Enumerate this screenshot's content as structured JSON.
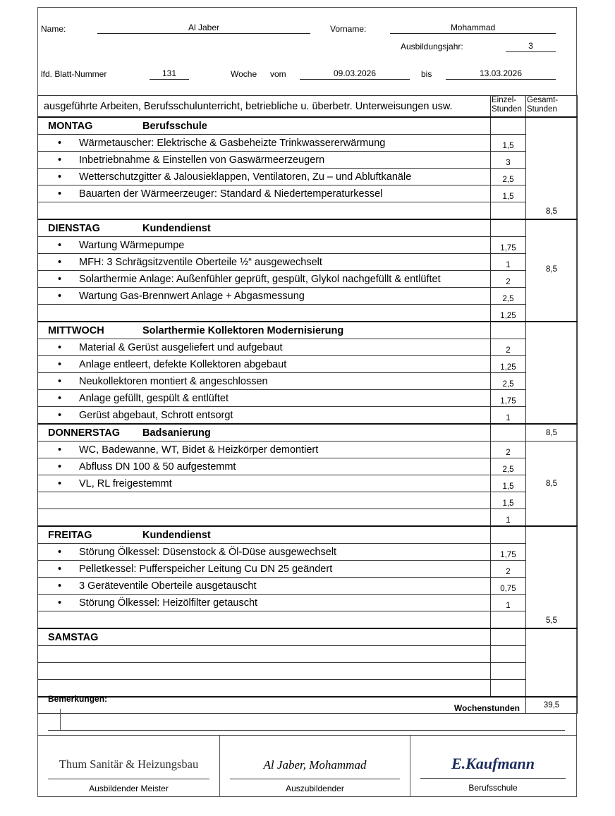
{
  "header": {
    "name_label": "Name:",
    "name": "Al Jaber",
    "vorname_label": "Vorname:",
    "vorname": "Mohammad",
    "jahr_label": "Ausbildungsjahr:",
    "jahr": "3",
    "blatt_label": "lfd. Blatt-Nummer",
    "blatt": "131",
    "woche_label": "Woche",
    "vom_label": "vom",
    "vom": "09.03.2026",
    "bis_label": "bis",
    "bis": "13.03.2026"
  },
  "table_header": {
    "activities": "ausgeführte Arbeiten, Berufsschulunterricht, betriebliche u. überbetr. Unterweisungen usw.",
    "einzel": "Einzel-\nStunden",
    "gesamt": "Gesamt-\nStunden"
  },
  "days": [
    {
      "name": "MONTAG",
      "sub": "Berufsschule",
      "rows": [
        {
          "text": "Wärmetauscher: Elektrische & Gasbeheizte Trinkwassererwärmung",
          "hours": "1,5"
        },
        {
          "text": "Inbetriebnahme & Einstellen von Gaswärmeerzeugern",
          "hours": "3"
        },
        {
          "text": "Wetterschutzgitter & Jalousieklappen, Ventilatoren, Zu – und Abluftkanäle",
          "hours": "2,5"
        },
        {
          "text": "Bauarten der Wärmeerzeuger: Standard & Niedertemperaturkessel",
          "hours": "1,5"
        },
        {
          "text": "",
          "hours": ""
        }
      ],
      "total": "8,5",
      "total_align": "bottom"
    },
    {
      "name": "DIENSTAG",
      "sub": "Kundendienst",
      "rows": [
        {
          "text": "Wartung Wärmepumpe",
          "hours": "1,75"
        },
        {
          "text": "MFH:  3 Schrägsitzventile Oberteile ½“ ausgewechselt",
          "hours": "1"
        },
        {
          "text": "Solarthermie Anlage: Außenfühler geprüft, gespült, Glykol nachgefüllt & entlüftet",
          "hours": "2"
        },
        {
          "text": "Wartung Gas-Brennwert Anlage + Abgasmessung",
          "hours": "2,5"
        },
        {
          "text": "",
          "hours": "1,25"
        }
      ],
      "total": "8,5",
      "total_align": "middle"
    },
    {
      "name": "MITTWOCH",
      "sub": "Solarthermie Kollektoren Modernisierung",
      "rows": [
        {
          "text": "Material & Gerüst ausgeliefert und aufgebaut",
          "hours": "2"
        },
        {
          "text": "Anlage entleert, defekte Kollektoren abgebaut",
          "hours": "1,25"
        },
        {
          "text": "Neukollektoren montiert & angeschlossen",
          "hours": "2,5"
        },
        {
          "text": "Anlage gefüllt, gespült & entlüftet",
          "hours": "1,75"
        },
        {
          "text": "Gerüst abgebaut, Schrott entsorgt",
          "hours": "1"
        }
      ],
      "total": "",
      "total_align": "middle"
    },
    {
      "name": "DONNERSTAG",
      "sub": "Badsanierung",
      "header_total": "8,5",
      "rows": [
        {
          "text": "WC, Badewanne, WT, Bidet & Heizkörper demontiert",
          "hours": "2"
        },
        {
          "text": "Abfluss DN 100 & 50 aufgestemmt",
          "hours": "2,5"
        },
        {
          "text": "VL, RL freigestemmt",
          "hours": "1,5"
        },
        {
          "text": "",
          "hours": "1,5"
        },
        {
          "text": "",
          "hours": "1"
        }
      ],
      "total": "8,5",
      "total_align": "middle"
    },
    {
      "name": "FREITAG",
      "sub": "Kundendienst",
      "rows": [
        {
          "text": "Störung Ölkessel: Düsenstock & Öl-Düse ausgewechselt",
          "hours": "1,75"
        },
        {
          "text": "Pelletkessel: Pufferspeicher Leitung Cu DN 25 geändert",
          "hours": "2"
        },
        {
          "text": "3 Geräteventile Oberteile ausgetauscht",
          "hours": "0,75"
        },
        {
          "text": "Störung Ölkessel: Heizölfilter getauscht",
          "hours": "1"
        },
        {
          "text": "",
          "hours": ""
        }
      ],
      "total": "5,5",
      "total_align": "bottom"
    },
    {
      "name": "SAMSTAG",
      "sub": "",
      "rows": [
        {
          "text": "",
          "hours": ""
        },
        {
          "text": "",
          "hours": ""
        },
        {
          "text": "",
          "hours": ""
        }
      ],
      "total": "",
      "total_align": "middle"
    }
  ],
  "wochenstunden_label": "Wochenstunden",
  "wochenstunden": "39,5",
  "bemerkungen_label": "Bemerkungen:",
  "signatures": [
    {
      "value": "Thum Sanitär & Heizungsbau",
      "label": "Ausbildender Meister"
    },
    {
      "value": "Al Jaber, Mohammad",
      "label": "Auszubildender"
    },
    {
      "value": "E.Kaufmann",
      "label": "Berufsschule"
    }
  ],
  "colors": {
    "signature": "#1c2d5e"
  }
}
